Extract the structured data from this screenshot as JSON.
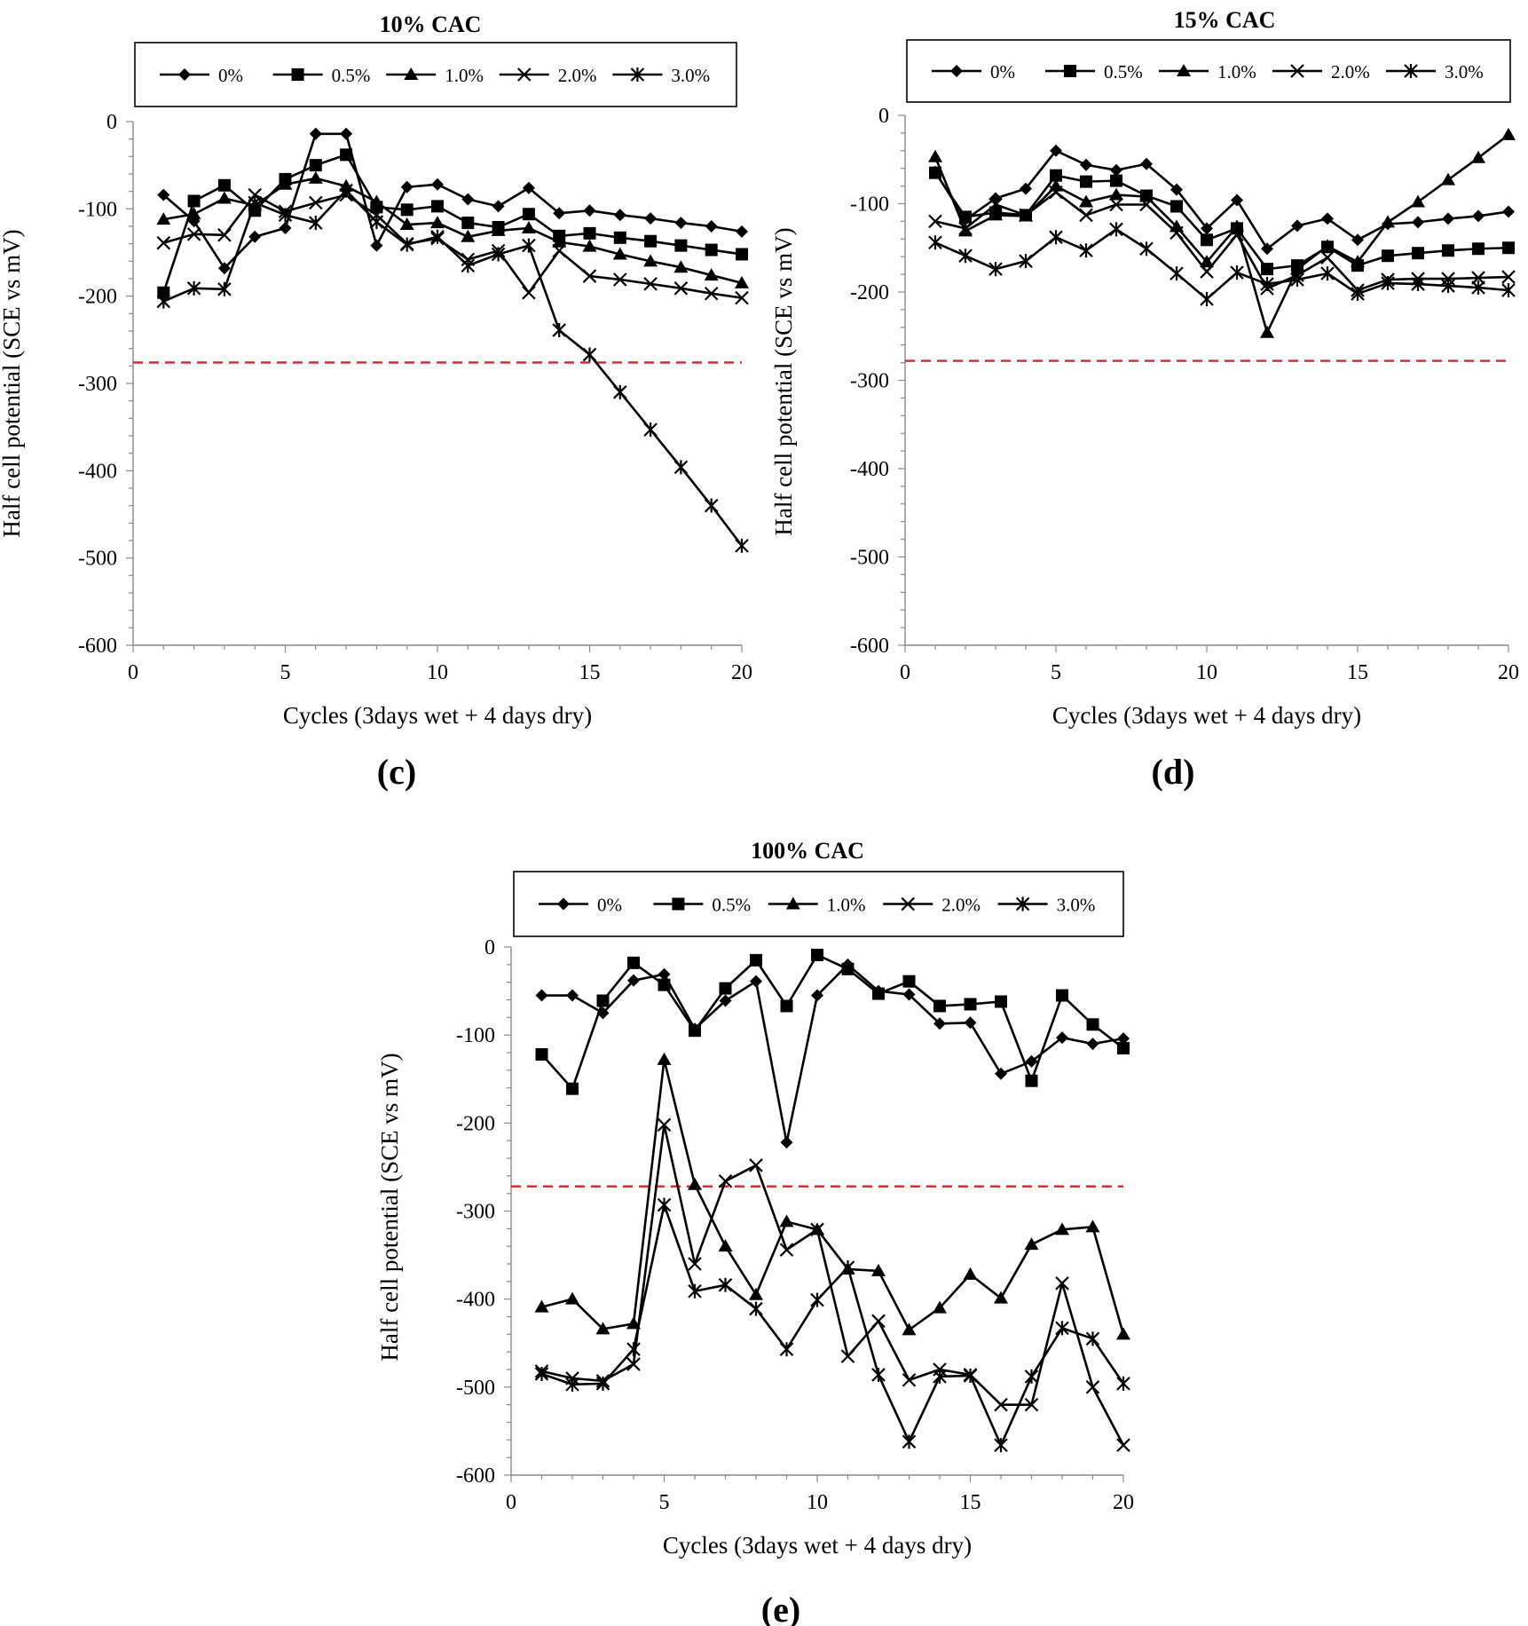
{
  "chart_data": [
    {
      "type": "line",
      "title": "10% CAC",
      "panel_label": "(c)",
      "xlabel": "Cycles (3days wet  + 4 days dry)",
      "ylabel": "Half cell potential (SCE vs mV)",
      "xlim": [
        0,
        20
      ],
      "ylim": [
        -600,
        0
      ],
      "xticks": [
        "0",
        "5",
        "10",
        "15",
        "20"
      ],
      "yticks": [
        "0",
        "-100",
        "-200",
        "-300",
        "-400",
        "-500",
        "-600"
      ],
      "threshold": -276,
      "threshold_color": "#e02020",
      "x": [
        1,
        2,
        3,
        4,
        5,
        6,
        7,
        8,
        9,
        10,
        11,
        12,
        13,
        14,
        15,
        16,
        17,
        18,
        19,
        20
      ],
      "series": [
        {
          "name": "0%",
          "marker": "diamond",
          "values": [
            -84,
            -114,
            -168,
            -132,
            -122,
            -14,
            -14,
            -142,
            -75,
            -72,
            -89,
            -97,
            -76,
            -105,
            -102,
            -107,
            -111,
            -116,
            -120,
            -126
          ]
        },
        {
          "name": "0.5%",
          "marker": "square",
          "values": [
            -196,
            -91,
            -73,
            -102,
            -66,
            -50,
            -38,
            -98,
            -101,
            -97,
            -116,
            -121,
            -106,
            -131,
            -128,
            -133,
            -137,
            -142,
            -147,
            -152
          ]
        },
        {
          "name": "1.0%",
          "marker": "triangle",
          "values": [
            -112,
            -106,
            -88,
            -96,
            -72,
            -65,
            -74,
            -92,
            -118,
            -116,
            -132,
            -125,
            -122,
            -138,
            -143,
            -152,
            -160,
            -167,
            -176,
            -185
          ]
        },
        {
          "name": "2.0%",
          "marker": "x",
          "values": [
            -139,
            -129,
            -130,
            -84,
            -103,
            -93,
            -84,
            -107,
            -140,
            -134,
            -158,
            -148,
            -196,
            -148,
            -177,
            -181,
            -186,
            -191,
            -197,
            -202
          ]
        },
        {
          "name": "3.0%",
          "marker": "asterisk",
          "values": [
            -206,
            -191,
            -192,
            -93,
            -107,
            -116,
            -79,
            -115,
            -141,
            -132,
            -165,
            -152,
            -142,
            -239,
            -267,
            -310,
            -353,
            -396,
            -440,
            -486
          ]
        }
      ]
    },
    {
      "type": "line",
      "title": "15% CAC",
      "panel_label": "(d)",
      "xlabel": "Cycles (3days wet  + 4 days dry)",
      "ylabel": "Half cell potential (SCE vs mV)",
      "xlim": [
        0,
        20
      ],
      "ylim": [
        -600,
        0
      ],
      "xticks": [
        "0",
        "5",
        "10",
        "15",
        "20"
      ],
      "yticks": [
        "0",
        "-100",
        "-200",
        "-300",
        "-400",
        "-500",
        "-600"
      ],
      "threshold": -278,
      "threshold_color": "#e02020",
      "x": [
        1,
        2,
        3,
        4,
        5,
        6,
        7,
        8,
        9,
        10,
        11,
        12,
        13,
        14,
        15,
        16,
        17,
        18,
        19,
        20
      ],
      "series": [
        {
          "name": "0%",
          "marker": "diamond",
          "values": [
            -64,
            -118,
            -94,
            -83,
            -40,
            -56,
            -62,
            -55,
            -84,
            -128,
            -96,
            -151,
            -125,
            -117,
            -141,
            -123,
            -121,
            -117,
            -114,
            -109
          ]
        },
        {
          "name": "0.5%",
          "marker": "square",
          "values": [
            -65,
            -115,
            -110,
            -113,
            -68,
            -75,
            -74,
            -91,
            -103,
            -141,
            -128,
            -174,
            -170,
            -149,
            -170,
            -159,
            -156,
            -153,
            -151,
            -150
          ]
        },
        {
          "name": "1.0%",
          "marker": "triangle",
          "values": [
            -47,
            -131,
            -113,
            -114,
            -80,
            -98,
            -90,
            -92,
            -126,
            -166,
            -126,
            -246,
            -174,
            -148,
            -166,
            -121,
            -98,
            -73,
            -48,
            -22
          ]
        },
        {
          "name": "2.0%",
          "marker": "x",
          "values": [
            -120,
            -128,
            -101,
            -113,
            -87,
            -113,
            -101,
            -101,
            -133,
            -177,
            -135,
            -196,
            -181,
            -161,
            -198,
            -186,
            -185,
            -185,
            -184,
            -183
          ]
        },
        {
          "name": "3.0%",
          "marker": "asterisk",
          "values": [
            -144,
            -159,
            -174,
            -165,
            -138,
            -153,
            -129,
            -151,
            -179,
            -208,
            -178,
            -191,
            -186,
            -179,
            -202,
            -190,
            -191,
            -193,
            -195,
            -198
          ]
        }
      ]
    },
    {
      "type": "line",
      "title": "100% CAC",
      "panel_label": "(e)",
      "xlabel": "Cycles (3days wet  + 4 days dry)",
      "ylabel": "Half cell potential (SCE vs mV)",
      "xlim": [
        0,
        20
      ],
      "ylim": [
        -600,
        0
      ],
      "xticks": [
        "0",
        "5",
        "10",
        "15",
        "20"
      ],
      "yticks": [
        "0",
        "-100",
        "-200",
        "-300",
        "-400",
        "-500",
        "-600"
      ],
      "threshold": -272,
      "threshold_color": "#e02020",
      "x": [
        1,
        2,
        3,
        4,
        5,
        6,
        7,
        8,
        9,
        10,
        11,
        12,
        13,
        14,
        15,
        16,
        17,
        18,
        19,
        20
      ],
      "series": [
        {
          "name": "0%",
          "marker": "diamond",
          "values": [
            -55,
            -55,
            -75,
            -38,
            -31,
            -93,
            -61,
            -39,
            -222,
            -55,
            -20,
            -50,
            -54,
            -87,
            -86,
            -144,
            -130,
            -103,
            -110,
            -104
          ]
        },
        {
          "name": "0.5%",
          "marker": "square",
          "values": [
            -122,
            -161,
            -61,
            -18,
            -43,
            -95,
            -47,
            -15,
            -67,
            -9,
            -25,
            -53,
            -39,
            -67,
            -65,
            -62,
            -152,
            -55,
            -88,
            -115
          ]
        },
        {
          "name": "1.0%",
          "marker": "triangle",
          "values": [
            -409,
            -400,
            -434,
            -428,
            -128,
            -270,
            -340,
            -395,
            -312,
            -321,
            -366,
            -368,
            -435,
            -410,
            -372,
            -399,
            -338,
            -321,
            -318,
            -440
          ]
        },
        {
          "name": "2.0%",
          "marker": "x",
          "values": [
            -482,
            -490,
            -493,
            -474,
            -202,
            -360,
            -266,
            -248,
            -344,
            -321,
            -465,
            -425,
            -492,
            -480,
            -486,
            -520,
            -520,
            -382,
            -500,
            -566
          ]
        },
        {
          "name": "3.0%",
          "marker": "asterisk",
          "values": [
            -485,
            -497,
            -496,
            -457,
            -293,
            -391,
            -384,
            -411,
            -457,
            -401,
            -364,
            -486,
            -562,
            -488,
            -487,
            -566,
            -488,
            -433,
            -445,
            -496
          ]
        }
      ]
    }
  ]
}
